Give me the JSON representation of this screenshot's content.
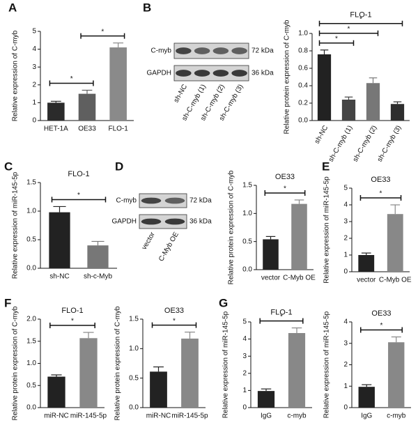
{
  "chart_data": [
    {
      "type": "bar",
      "panel": "A",
      "ylabel": "Relative expression of C-myb",
      "categories": [
        "HET-1A",
        "OE33",
        "FLO-1"
      ],
      "values": [
        1.0,
        1.5,
        4.1
      ],
      "errors": [
        0.08,
        0.2,
        0.25
      ],
      "colors": [
        "#2b2b2b",
        "#5f5f5f",
        "#8a8a8a"
      ],
      "ylim": [
        0,
        5
      ],
      "yticks": [
        0,
        1,
        2,
        3,
        4,
        5
      ],
      "annotations": [
        {
          "text": "*",
          "groups": [
            "HET-1A",
            "OE33"
          ]
        },
        {
          "text": "*",
          "groups": [
            "OE33",
            "FLO-1"
          ]
        }
      ]
    },
    {
      "type": "bar",
      "title": "FLO-1",
      "ylabel": "Relative protein expression of C-myb",
      "categories": [
        "sh-NC",
        "sh-C-myb (1)",
        "sh-C-myb (2)",
        "sh-C-myb (3)"
      ],
      "values": [
        0.76,
        0.24,
        0.43,
        0.19
      ],
      "errors": [
        0.05,
        0.03,
        0.06,
        0.025
      ],
      "colors": [
        "#222222",
        "#444444",
        "#777777",
        "#2e2e2e"
      ],
      "ylim": [
        0,
        1
      ],
      "yticks": [
        {
          "value": 0,
          "label": "0.0"
        },
        0.2,
        0.4,
        0.6,
        0.8,
        {
          "value": 1,
          "label": "1.0"
        }
      ],
      "annotations": [
        {
          "text": "*",
          "groups": [
            "sh-NC",
            "sh-C-myb (1)"
          ]
        },
        {
          "text": "*",
          "groups": [
            "sh-NC",
            "sh-C-myb (2)"
          ]
        },
        {
          "text": "*",
          "groups": [
            "sh-NC",
            "sh-C-myb (3)"
          ]
        }
      ]
    },
    {
      "type": "bar",
      "panel": "C",
      "title": "FLO-1",
      "ylabel": "Relative expression of miR-145-5p",
      "categories": [
        "sh-NC",
        "sh-c-Myb"
      ],
      "values": [
        0.98,
        0.4
      ],
      "errors": [
        0.1,
        0.07
      ],
      "colors": [
        "#222222",
        "#777777"
      ],
      "ylim": [
        0,
        1.5
      ],
      "yticks": [
        {
          "value": 0,
          "label": "0.0"
        },
        0.5,
        {
          "value": 1,
          "label": "1.0"
        },
        1.5
      ],
      "annotations": [
        {
          "text": "*",
          "groups": [
            "sh-NC",
            "sh-c-Myb"
          ]
        }
      ]
    },
    {
      "type": "bar",
      "title": "OE33",
      "ylabel": "Relative protein expression of C-myb",
      "categories": [
        "vector",
        "C-Myb OE"
      ],
      "values": [
        0.54,
        1.17
      ],
      "errors": [
        0.05,
        0.07
      ],
      "colors": [
        "#222222",
        "#888888"
      ],
      "ylim": [
        0,
        1.5
      ],
      "yticks": [
        {
          "value": 0,
          "label": "0.0"
        },
        0.5,
        {
          "value": 1,
          "label": "1.0"
        },
        1.5
      ],
      "annotations": [
        {
          "text": "*",
          "groups": [
            "vector",
            "C-Myb OE"
          ]
        }
      ]
    },
    {
      "type": "bar",
      "panel": "E",
      "title": "OE33",
      "ylabel": "Relative expression of miR-145-5p",
      "categories": [
        "vector",
        "C-Myb OE"
      ],
      "values": [
        1.0,
        3.45
      ],
      "errors": [
        0.12,
        0.55
      ],
      "colors": [
        "#222222",
        "#888888"
      ],
      "ylim": [
        0,
        5
      ],
      "yticks": [
        0,
        1,
        2,
        3,
        4,
        5
      ],
      "annotations": [
        {
          "text": "*",
          "groups": [
            "vector",
            "C-Myb OE"
          ]
        }
      ]
    },
    {
      "type": "bar",
      "panel": "F",
      "title": "FLO-1",
      "ylabel": "Relative protein expression of C-myb",
      "categories": [
        "miR-NC",
        "miR-145-5p"
      ],
      "values": [
        0.7,
        1.57
      ],
      "errors": [
        0.04,
        0.13
      ],
      "colors": [
        "#222222",
        "#888888"
      ],
      "ylim": [
        0,
        2
      ],
      "yticks": [
        {
          "value": 0,
          "label": "0.0"
        },
        0.5,
        {
          "value": 1,
          "label": "1.0"
        },
        1.5,
        {
          "value": 2,
          "label": "2.0"
        }
      ],
      "annotations": [
        {
          "text": "*",
          "groups": [
            "miR-NC",
            "miR-145-5p"
          ]
        }
      ]
    },
    {
      "type": "bar",
      "title": "OE33",
      "ylabel": "Relative protein expression of C-myb",
      "categories": [
        "miR-NC",
        "miR-145-5p"
      ],
      "values": [
        0.61,
        1.17
      ],
      "errors": [
        0.08,
        0.11
      ],
      "colors": [
        "#222222",
        "#888888"
      ],
      "ylim": [
        0,
        1.5
      ],
      "yticks": [
        {
          "value": 0,
          "label": "0.0"
        },
        0.5,
        {
          "value": 1,
          "label": "1.0"
        },
        1.5
      ],
      "annotations": [
        {
          "text": "*",
          "groups": [
            "miR-NC",
            "miR-145-5p"
          ]
        }
      ]
    },
    {
      "type": "bar",
      "panel": "G",
      "title": "FLO-1",
      "ylabel": "Relative expression of miR-145-5p",
      "categories": [
        "IgG",
        "c-myb"
      ],
      "values": [
        0.97,
        4.35
      ],
      "errors": [
        0.12,
        0.3
      ],
      "colors": [
        "#222222",
        "#888888"
      ],
      "ylim": [
        0,
        5
      ],
      "yticks": [
        0,
        1,
        2,
        3,
        4,
        5
      ],
      "annotations": [
        {
          "text": "*",
          "groups": [
            "IgG",
            "c-myb"
          ]
        }
      ]
    },
    {
      "type": "bar",
      "title": "OE33",
      "ylabel": "Relative expression of miR-145-5p",
      "categories": [
        "IgG",
        "c-myb"
      ],
      "values": [
        0.97,
        3.05
      ],
      "errors": [
        0.1,
        0.25
      ],
      "colors": [
        "#222222",
        "#888888"
      ],
      "ylim": [
        0,
        4
      ],
      "yticks": [
        0,
        1,
        2,
        3,
        4
      ],
      "annotations": [
        {
          "text": "*",
          "groups": [
            "IgG",
            "c-myb"
          ]
        }
      ]
    }
  ],
  "blots": [
    {
      "panel": "B",
      "rows": [
        {
          "protein": "C-myb",
          "size": "72 kDa"
        },
        {
          "protein": "GAPDH",
          "size": "36 kDa"
        }
      ],
      "lanes": [
        "sh-NC",
        "sh-C-myb (1)",
        "sh-C-myb (2)",
        "sh-C-myb (3)"
      ]
    },
    {
      "panel": "D",
      "rows": [
        {
          "protein": "C-myb",
          "size": "72 kDa"
        },
        {
          "protein": "GAPDH",
          "size": "36 kDa"
        }
      ],
      "lanes": [
        "vector",
        "C-Myb OE"
      ]
    }
  ]
}
